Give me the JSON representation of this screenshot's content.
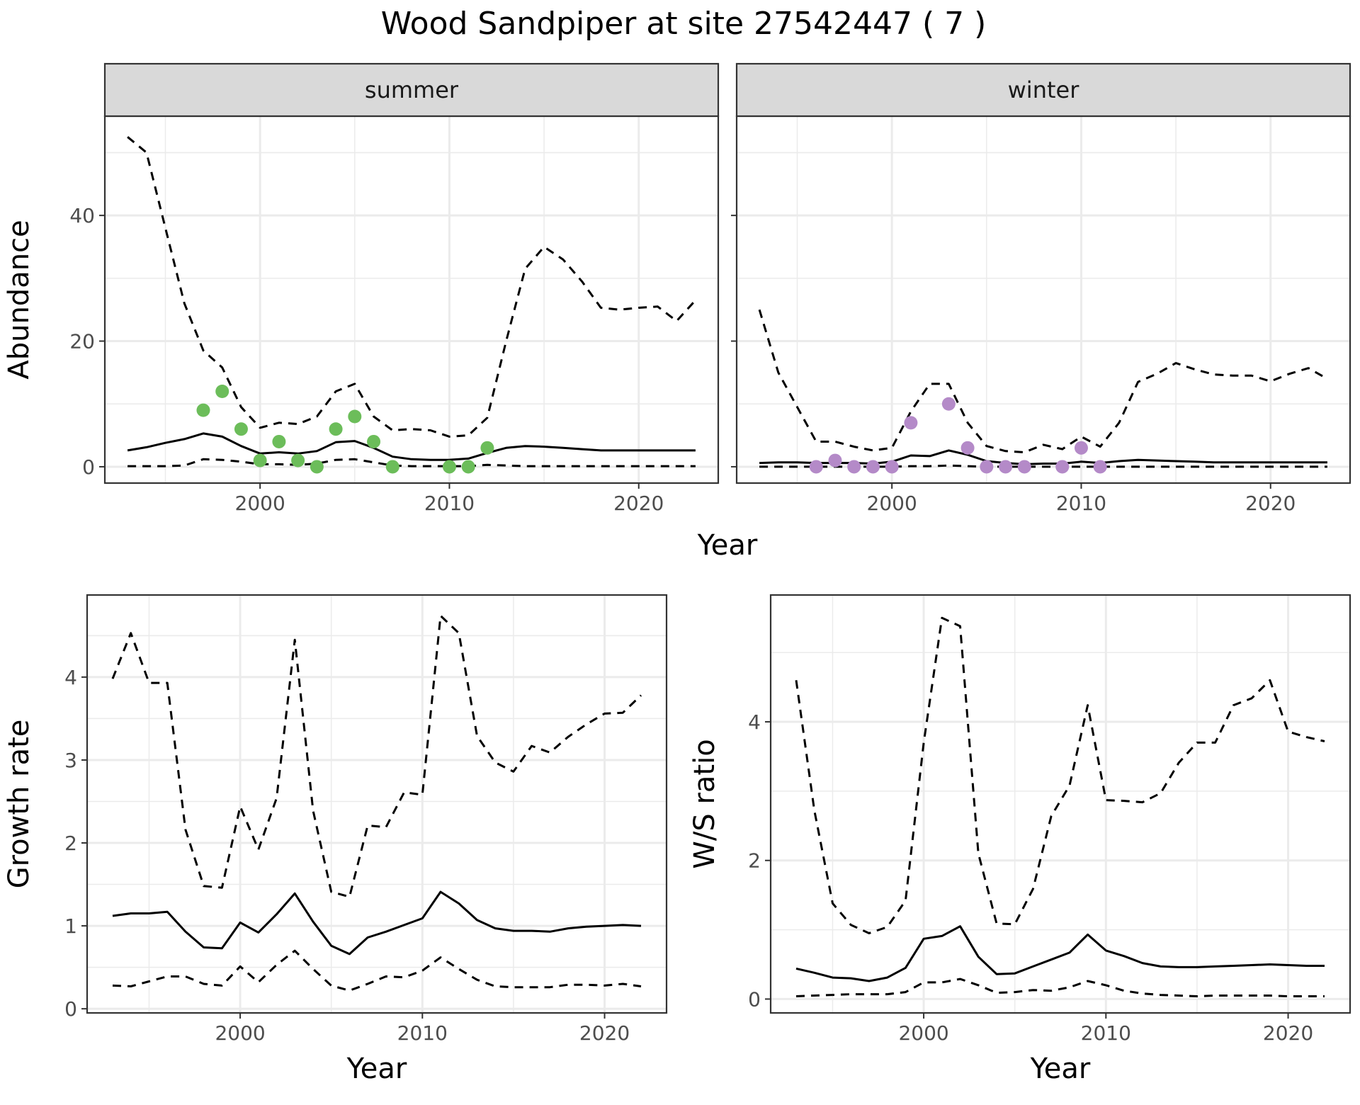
{
  "figure": {
    "title": "Wood Sandpiper at site 27542447 ( 7 )"
  },
  "colors": {
    "summer_points": "#6cbd5a",
    "winter_points": "#b48ac8",
    "line": "#000000",
    "strip_fill": "#d9d9d9",
    "grid": "#ebebeb"
  },
  "chart_data": [
    {
      "type": "line",
      "facet": "summer",
      "xlabel": "Year",
      "ylabel": "Abundance",
      "xlim": [
        1991.8,
        2024.2
      ],
      "ylim": [
        -2.6,
        55.8
      ],
      "xticks": [
        2000,
        2010,
        2020
      ],
      "yticks": [
        0,
        20,
        40
      ],
      "grid": true,
      "x": [
        1993,
        1994,
        1995,
        1996,
        1997,
        1998,
        1999,
        2000,
        2001,
        2002,
        2003,
        2004,
        2005,
        2006,
        2007,
        2008,
        2009,
        2010,
        2011,
        2012,
        2013,
        2014,
        2015,
        2016,
        2017,
        2018,
        2019,
        2020,
        2021,
        2022,
        2023
      ],
      "series": [
        {
          "role": "estimate",
          "style": "solid",
          "values": [
            2.6,
            3.1,
            3.8,
            4.4,
            5.3,
            4.8,
            3.3,
            2.1,
            2.3,
            2.1,
            2.5,
            3.9,
            4.1,
            3.0,
            1.6,
            1.2,
            1.1,
            1.1,
            1.3,
            2.2,
            3.0,
            3.3,
            3.2,
            3.0,
            2.8,
            2.6,
            2.6,
            2.6,
            2.6,
            2.6,
            2.6
          ]
        },
        {
          "role": "upper",
          "style": "dashed",
          "values": [
            52.5,
            50.0,
            38.0,
            26.0,
            18.5,
            15.8,
            9.5,
            6.2,
            7.0,
            6.8,
            8.0,
            12.0,
            13.2,
            8.0,
            5.8,
            6.0,
            5.8,
            4.8,
            5.0,
            7.8,
            20.0,
            31.5,
            35.0,
            33.0,
            29.5,
            25.3,
            25.0,
            25.3,
            25.5,
            23.2,
            26.5
          ]
        },
        {
          "role": "lower",
          "style": "dashed",
          "values": [
            0.1,
            0.1,
            0.1,
            0.2,
            1.2,
            1.1,
            0.8,
            0.4,
            0.4,
            0.3,
            0.5,
            1.1,
            1.2,
            0.7,
            0.2,
            0.1,
            0.1,
            0.1,
            0.1,
            0.3,
            0.2,
            0.1,
            0.1,
            0.1,
            0.1,
            0.1,
            0.1,
            0.1,
            0.1,
            0.1,
            0.1
          ]
        }
      ],
      "observed": {
        "x": [
          1997,
          1998,
          1999,
          2000,
          2001,
          2002,
          2003,
          2004,
          2005,
          2006,
          2007,
          2010,
          2011,
          2012
        ],
        "y": [
          9,
          12,
          6,
          1,
          4,
          1,
          0,
          6,
          8,
          4,
          0,
          0,
          0,
          3
        ]
      }
    },
    {
      "type": "line",
      "facet": "winter",
      "xlabel": "Year",
      "ylabel": "",
      "xlim": [
        1991.8,
        2024.2
      ],
      "ylim": [
        -2.6,
        55.8
      ],
      "xticks": [
        2000,
        2010,
        2020
      ],
      "yticks": [
        0,
        20,
        40
      ],
      "grid": true,
      "x": [
        1993,
        1994,
        1995,
        1996,
        1997,
        1998,
        1999,
        2000,
        2001,
        2002,
        2003,
        2004,
        2005,
        2006,
        2007,
        2008,
        2009,
        2010,
        2011,
        2012,
        2013,
        2014,
        2015,
        2016,
        2017,
        2018,
        2019,
        2020,
        2021,
        2022,
        2023
      ],
      "series": [
        {
          "role": "estimate",
          "style": "solid",
          "values": [
            0.6,
            0.7,
            0.7,
            0.6,
            0.6,
            0.6,
            0.5,
            0.8,
            1.8,
            1.7,
            2.6,
            1.9,
            0.9,
            0.6,
            0.4,
            0.5,
            0.5,
            0.8,
            0.6,
            0.9,
            1.1,
            1.0,
            0.9,
            0.8,
            0.7,
            0.7,
            0.7,
            0.7,
            0.7,
            0.7,
            0.7
          ]
        },
        {
          "role": "upper",
          "style": "dashed",
          "values": [
            25.0,
            15.0,
            9.5,
            4.0,
            4.0,
            3.2,
            2.6,
            3.0,
            8.8,
            13.2,
            13.2,
            7.0,
            3.3,
            2.5,
            2.3,
            3.5,
            2.8,
            4.8,
            3.2,
            7.0,
            13.5,
            14.8,
            16.5,
            15.5,
            14.7,
            14.5,
            14.5,
            13.6,
            14.8,
            15.7,
            14.0
          ]
        },
        {
          "role": "lower",
          "style": "dashed",
          "values": [
            0.0,
            0.0,
            0.0,
            0.0,
            0.0,
            0.0,
            0.0,
            0.0,
            0.1,
            0.1,
            0.2,
            0.1,
            0.0,
            0.0,
            0.0,
            0.0,
            0.0,
            0.0,
            0.0,
            0.0,
            0.0,
            0.0,
            0.0,
            0.0,
            0.0,
            0.0,
            0.0,
            0.0,
            0.0,
            0.0,
            0.0
          ]
        }
      ],
      "observed": {
        "x": [
          1996,
          1997,
          1998,
          1999,
          2000,
          2001,
          2003,
          2004,
          2005,
          2006,
          2007,
          2009,
          2010,
          2011
        ],
        "y": [
          0,
          1,
          0,
          0,
          0,
          7,
          10,
          3,
          0,
          0,
          0,
          0,
          3,
          0
        ]
      }
    },
    {
      "type": "line",
      "facet": "growth",
      "xlabel": "Year",
      "ylabel": "Growth rate",
      "xlim": [
        1991.6,
        2023.4
      ],
      "ylim": [
        -0.05,
        4.99
      ],
      "xticks": [
        2000,
        2010,
        2020
      ],
      "yticks": [
        0,
        1,
        2,
        3,
        4
      ],
      "grid": true,
      "x": [
        1993,
        1994,
        1995,
        1996,
        1997,
        1998,
        1999,
        2000,
        2001,
        2002,
        2003,
        2004,
        2005,
        2006,
        2007,
        2008,
        2009,
        2010,
        2011,
        2012,
        2013,
        2014,
        2015,
        2016,
        2017,
        2018,
        2019,
        2020,
        2021,
        2022
      ],
      "series": [
        {
          "role": "estimate",
          "style": "solid",
          "values": [
            1.12,
            1.15,
            1.15,
            1.17,
            0.93,
            0.74,
            0.73,
            1.04,
            0.92,
            1.14,
            1.39,
            1.05,
            0.76,
            0.66,
            0.86,
            0.93,
            1.01,
            1.09,
            1.41,
            1.27,
            1.07,
            0.97,
            0.94,
            0.94,
            0.93,
            0.97,
            0.99,
            1.0,
            1.01,
            1.0
          ]
        },
        {
          "role": "upper",
          "style": "dashed",
          "values": [
            3.98,
            4.53,
            3.93,
            3.93,
            2.16,
            1.48,
            1.46,
            2.44,
            1.92,
            2.54,
            4.45,
            2.39,
            1.41,
            1.35,
            2.21,
            2.19,
            2.61,
            2.58,
            4.74,
            4.53,
            3.29,
            2.97,
            2.86,
            3.17,
            3.09,
            3.28,
            3.43,
            3.56,
            3.57,
            3.78
          ]
        },
        {
          "role": "lower",
          "style": "dashed",
          "values": [
            0.28,
            0.27,
            0.33,
            0.39,
            0.39,
            0.3,
            0.28,
            0.51,
            0.32,
            0.53,
            0.7,
            0.48,
            0.28,
            0.22,
            0.3,
            0.39,
            0.38,
            0.46,
            0.62,
            0.48,
            0.35,
            0.27,
            0.26,
            0.26,
            0.26,
            0.29,
            0.29,
            0.28,
            0.3,
            0.27
          ]
        }
      ]
    },
    {
      "type": "line",
      "facet": "ws_ratio",
      "xlabel": "Year",
      "ylabel": "W/S ratio",
      "xlim": [
        1991.6,
        2023.4
      ],
      "ylim": [
        -0.2,
        5.83
      ],
      "xticks": [
        2000,
        2010,
        2020
      ],
      "yticks": [
        0,
        2,
        4
      ],
      "grid": true,
      "x": [
        1993,
        1994,
        1995,
        1996,
        1997,
        1998,
        1999,
        2000,
        2001,
        2002,
        2003,
        2004,
        2005,
        2006,
        2007,
        2008,
        2009,
        2010,
        2011,
        2012,
        2013,
        2014,
        2015,
        2016,
        2017,
        2018,
        2019,
        2020,
        2021,
        2022
      ],
      "series": [
        {
          "role": "estimate",
          "style": "solid",
          "values": [
            0.44,
            0.38,
            0.31,
            0.3,
            0.26,
            0.31,
            0.45,
            0.87,
            0.91,
            1.05,
            0.61,
            0.36,
            0.37,
            0.47,
            0.57,
            0.67,
            0.93,
            0.7,
            0.62,
            0.52,
            0.47,
            0.46,
            0.46,
            0.47,
            0.48,
            0.49,
            0.5,
            0.49,
            0.48,
            0.48
          ]
        },
        {
          "role": "upper",
          "style": "dashed",
          "values": [
            4.6,
            2.72,
            1.38,
            1.07,
            0.95,
            1.04,
            1.42,
            3.7,
            5.5,
            5.38,
            2.1,
            1.09,
            1.08,
            1.59,
            2.64,
            3.08,
            4.24,
            2.87,
            2.86,
            2.84,
            2.97,
            3.41,
            3.7,
            3.7,
            4.24,
            4.34,
            4.6,
            3.86,
            3.78,
            3.72
          ]
        },
        {
          "role": "lower",
          "style": "dashed",
          "values": [
            0.04,
            0.05,
            0.06,
            0.07,
            0.07,
            0.07,
            0.1,
            0.24,
            0.24,
            0.29,
            0.2,
            0.09,
            0.1,
            0.13,
            0.12,
            0.17,
            0.26,
            0.2,
            0.12,
            0.08,
            0.06,
            0.05,
            0.04,
            0.05,
            0.05,
            0.05,
            0.05,
            0.04,
            0.04,
            0.04
          ]
        }
      ]
    }
  ]
}
